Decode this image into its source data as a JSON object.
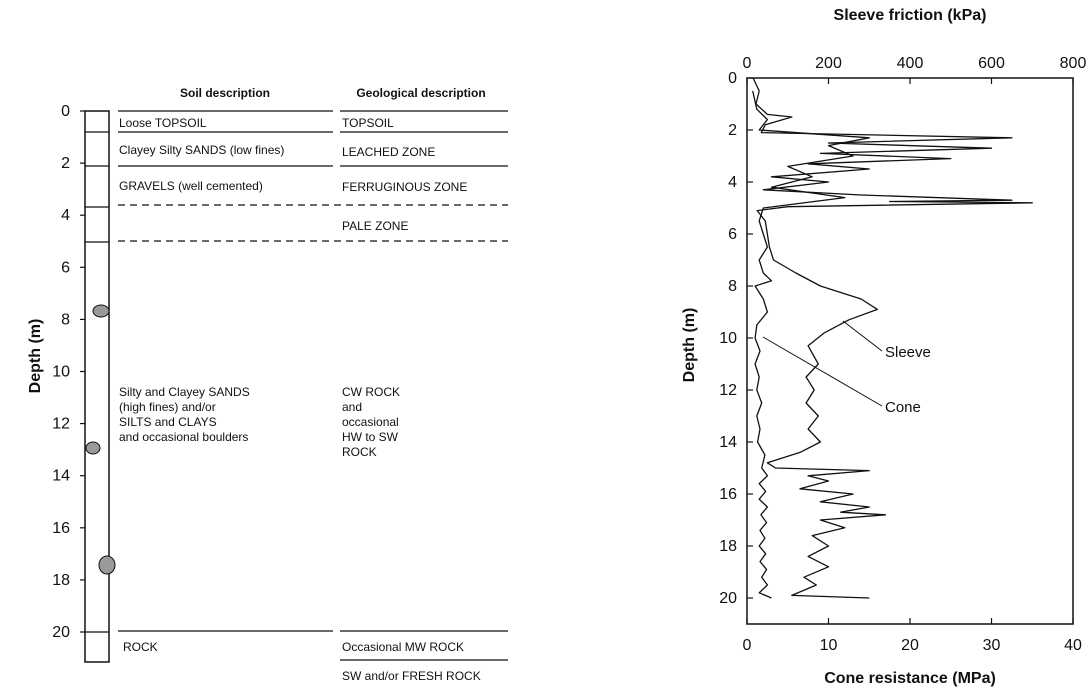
{
  "log": {
    "headers": {
      "soil": "Soil description",
      "geo": "Geological description"
    },
    "ylabel": "Depth (m)",
    "depth_ticks": [
      "0",
      "2",
      "4",
      "6",
      "8",
      "10",
      "12",
      "14",
      "16",
      "18",
      "20"
    ],
    "soil_rows": [
      "Loose TOPSOIL",
      "Clayey Silty SANDS (low fines)",
      "GRAVELS (well cemented)",
      "Silty and Clayey SANDS",
      "(high fines) and/or",
      "SILTS and CLAYS",
      "and occasional boulders",
      "ROCK"
    ],
    "geo_rows": [
      "TOPSOIL",
      "LEACHED ZONE",
      "FERRUGINOUS ZONE",
      "PALE ZONE",
      "CW ROCK",
      "and",
      "occasional",
      "HW to SW",
      "ROCK",
      "Occasional MW ROCK",
      "SW and/or FRESH ROCK"
    ]
  },
  "chart_data": {
    "type": "line",
    "title": "Sleeve friction (kPa)",
    "xlabel": "Cone resistance (MPa)",
    "ylabel": "Depth (m)",
    "x_ticks": [
      "0",
      "10",
      "20",
      "30",
      "40"
    ],
    "x2_ticks": [
      "0",
      "200",
      "400",
      "600",
      "800"
    ],
    "y_ticks": [
      "0",
      "2",
      "4",
      "6",
      "8",
      "10",
      "12",
      "14",
      "16",
      "18",
      "20"
    ],
    "xlim": [
      0,
      40
    ],
    "x2lim": [
      0,
      800
    ],
    "ylim": [
      0,
      21
    ],
    "annotations": [
      "Sleeve",
      "Cone"
    ],
    "series": [
      {
        "name": "Sleeve",
        "x_units": "kPa",
        "points": [
          [
            15,
            0
          ],
          [
            30,
            0.5
          ],
          [
            22,
            1
          ],
          [
            50,
            1.4
          ],
          [
            110,
            1.5
          ],
          [
            45,
            1.8
          ],
          [
            35,
            2.1
          ],
          [
            650,
            2.3
          ],
          [
            200,
            2.5
          ],
          [
            600,
            2.7
          ],
          [
            180,
            2.9
          ],
          [
            500,
            3.1
          ],
          [
            150,
            3.3
          ],
          [
            300,
            3.5
          ],
          [
            60,
            3.8
          ],
          [
            200,
            4
          ],
          [
            40,
            4.3
          ],
          [
            280,
            4.5
          ],
          [
            650,
            4.7
          ],
          [
            350,
            4.75
          ],
          [
            700,
            4.8
          ],
          [
            100,
            4.95
          ],
          [
            25,
            5.1
          ],
          [
            45,
            5.5
          ],
          [
            55,
            6.5
          ],
          [
            65,
            7
          ],
          [
            120,
            7.5
          ],
          [
            180,
            8
          ],
          [
            280,
            8.5
          ],
          [
            320,
            8.9
          ],
          [
            250,
            9.3
          ],
          [
            190,
            9.8
          ],
          [
            150,
            10.3
          ],
          [
            175,
            11
          ],
          [
            145,
            11.5
          ],
          [
            165,
            12
          ],
          [
            145,
            12.5
          ],
          [
            175,
            13
          ],
          [
            150,
            13.5
          ],
          [
            180,
            14
          ],
          [
            130,
            14.4
          ],
          [
            50,
            14.8
          ],
          [
            70,
            15
          ],
          [
            300,
            15.1
          ],
          [
            150,
            15.3
          ],
          [
            200,
            15.5
          ],
          [
            130,
            15.8
          ],
          [
            260,
            16
          ],
          [
            180,
            16.3
          ],
          [
            300,
            16.5
          ],
          [
            230,
            16.7
          ],
          [
            340,
            16.8
          ],
          [
            180,
            17
          ],
          [
            240,
            17.3
          ],
          [
            160,
            17.6
          ],
          [
            200,
            18
          ],
          [
            150,
            18.4
          ],
          [
            200,
            18.8
          ],
          [
            140,
            19.2
          ],
          [
            170,
            19.5
          ],
          [
            110,
            19.9
          ],
          [
            300,
            20
          ]
        ]
      },
      {
        "name": "Cone",
        "x_units": "MPa",
        "points": [
          [
            0.7,
            0.5
          ],
          [
            1.2,
            1.2
          ],
          [
            2.5,
            1.6
          ],
          [
            1.5,
            2
          ],
          [
            15,
            2.3
          ],
          [
            10,
            2.6
          ],
          [
            13,
            3
          ],
          [
            5,
            3.4
          ],
          [
            8,
            3.8
          ],
          [
            3,
            4.2
          ],
          [
            12,
            4.6
          ],
          [
            2,
            5
          ],
          [
            1.5,
            5.5
          ],
          [
            2,
            6
          ],
          [
            2.5,
            6.5
          ],
          [
            1.5,
            7
          ],
          [
            2,
            7.5
          ],
          [
            3,
            7.8
          ],
          [
            1,
            8
          ],
          [
            2,
            8.5
          ],
          [
            2.5,
            9
          ],
          [
            1.2,
            9.5
          ],
          [
            1,
            10
          ],
          [
            1.6,
            10.5
          ],
          [
            1,
            11
          ],
          [
            1.5,
            11.5
          ],
          [
            1.2,
            12
          ],
          [
            1.8,
            12.5
          ],
          [
            1.2,
            13
          ],
          [
            1.6,
            13.5
          ],
          [
            1.3,
            14
          ],
          [
            2.2,
            14.5
          ],
          [
            1.8,
            15
          ],
          [
            2.5,
            15.3
          ],
          [
            1.5,
            15.6
          ],
          [
            2.3,
            15.9
          ],
          [
            1.5,
            16.2
          ],
          [
            2.5,
            16.5
          ],
          [
            1.7,
            16.8
          ],
          [
            2.4,
            17.1
          ],
          [
            1.6,
            17.4
          ],
          [
            2.2,
            17.7
          ],
          [
            1.5,
            18
          ],
          [
            2.3,
            18.3
          ],
          [
            1.6,
            18.6
          ],
          [
            2.4,
            18.9
          ],
          [
            1.8,
            19.2
          ],
          [
            2.5,
            19.5
          ],
          [
            1.5,
            19.8
          ],
          [
            3,
            20
          ]
        ]
      }
    ]
  }
}
